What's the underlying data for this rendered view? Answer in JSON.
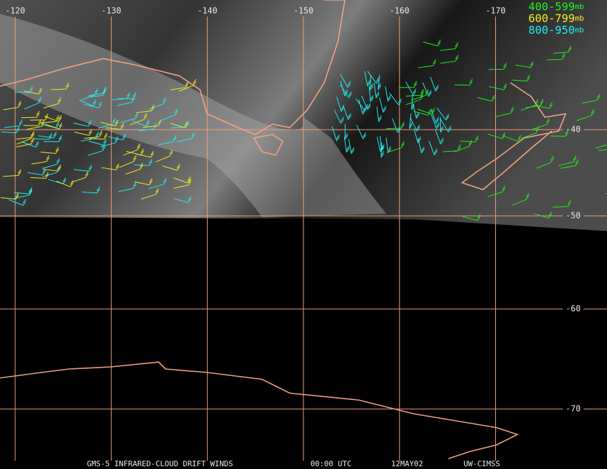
{
  "map": {
    "longitudes": [
      -120,
      -130,
      -140,
      -150,
      -160,
      -170
    ],
    "latitudes": [
      -40,
      -50,
      -60,
      -70
    ],
    "legend": [
      {
        "range": "400-599",
        "unit": "mb",
        "color": "#22ee22"
      },
      {
        "range": "600-799",
        "unit": "mb",
        "color": "#eeee22"
      },
      {
        "range": "800-950",
        "unit": "mb",
        "color": "#22eeee"
      }
    ],
    "footer": [
      "GMS-5 INFRARED-CLOUD DRIFT WINDS",
      "00:00 UTC",
      "12MAY02",
      "UW-CIMSS"
    ]
  }
}
